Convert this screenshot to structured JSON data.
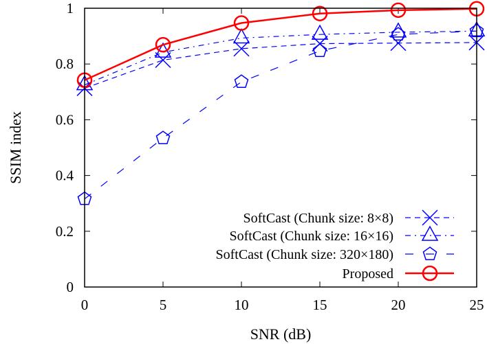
{
  "chart_data": {
    "type": "line",
    "xlabel": "SNR (dB)",
    "ylabel": "SSIM index",
    "xlim": [
      0,
      25
    ],
    "ylim": [
      0,
      1
    ],
    "xticks": [
      "0",
      "5",
      "10",
      "15",
      "20",
      "25"
    ],
    "yticks": [
      "0",
      "0.2",
      "0.4",
      "0.6",
      "0.8",
      "1"
    ],
    "grid": false,
    "legend_position": "bottom-right",
    "x": [
      0,
      5,
      10,
      15,
      20,
      25
    ],
    "series": [
      {
        "name": "SoftCast (Chunk size: 8×8)",
        "color": "#0000ff",
        "marker": "x",
        "dash": "8,6",
        "values": [
          0.713,
          0.814,
          0.855,
          0.873,
          0.875,
          0.877
        ]
      },
      {
        "name": "SoftCast (Chunk size: 16×16)",
        "color": "#0000ff",
        "marker": "triangle",
        "dash": "8,6,2,6",
        "values": [
          0.725,
          0.842,
          0.893,
          0.906,
          0.914,
          0.918
        ]
      },
      {
        "name": "SoftCast (Chunk size: 320×180)",
        "color": "#0000ff",
        "marker": "pentagon",
        "dash": "12,18",
        "values": [
          0.316,
          0.534,
          0.736,
          0.847,
          0.906,
          0.918
        ]
      },
      {
        "name": "Proposed",
        "color": "#ff0000",
        "marker": "circle",
        "dash": "",
        "values": [
          0.742,
          0.869,
          0.947,
          0.981,
          0.993,
          0.998
        ]
      }
    ]
  }
}
